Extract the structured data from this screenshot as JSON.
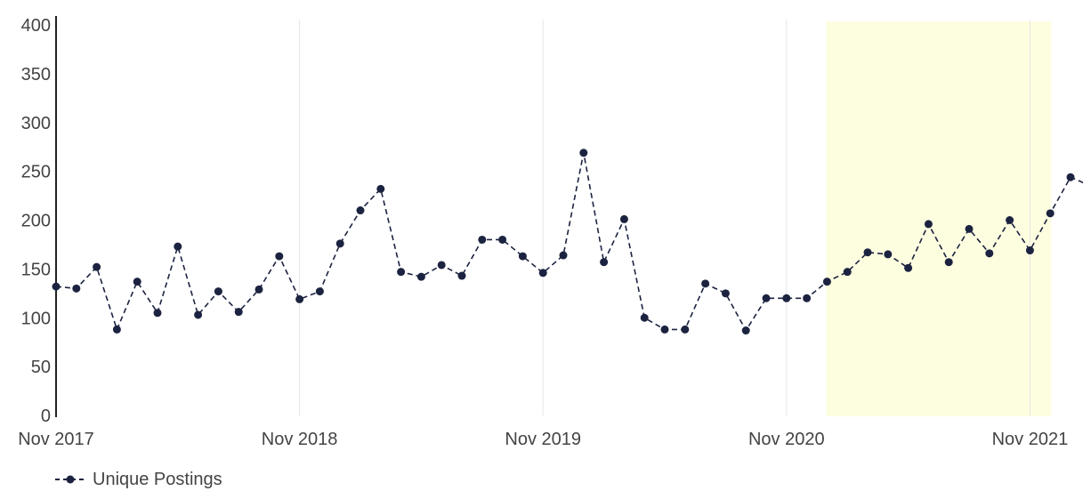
{
  "chart_data": {
    "type": "line",
    "y_ticks": [
      0,
      50,
      100,
      150,
      200,
      250,
      300,
      350,
      400
    ],
    "x_ticks": [
      "Nov 2017",
      "Nov 2018",
      "Nov 2019",
      "Nov 2020",
      "Nov 2021"
    ],
    "ylim": [
      0,
      400
    ],
    "grid": "vertical lines at x tick labels",
    "highlight_band": {
      "from_index": 38,
      "to_index": 49,
      "color": "#fdfde0"
    },
    "series": [
      {
        "name": "Unique Postings",
        "color": "#1c2340",
        "line_style": "dashed",
        "values": [
          132,
          130,
          152,
          88,
          137,
          105,
          173,
          103,
          127,
          106,
          129,
          163,
          119,
          127,
          176,
          210,
          232,
          147,
          142,
          154,
          143,
          180,
          180,
          163,
          146,
          164,
          269,
          157,
          201,
          100,
          88,
          88,
          135,
          125,
          87,
          120,
          120,
          120,
          137,
          147,
          167,
          165,
          151,
          196,
          157,
          191,
          166,
          200,
          169,
          207,
          244,
          235
        ]
      }
    ],
    "legend": {
      "position": "bottom-left",
      "label": "Unique Postings"
    }
  }
}
